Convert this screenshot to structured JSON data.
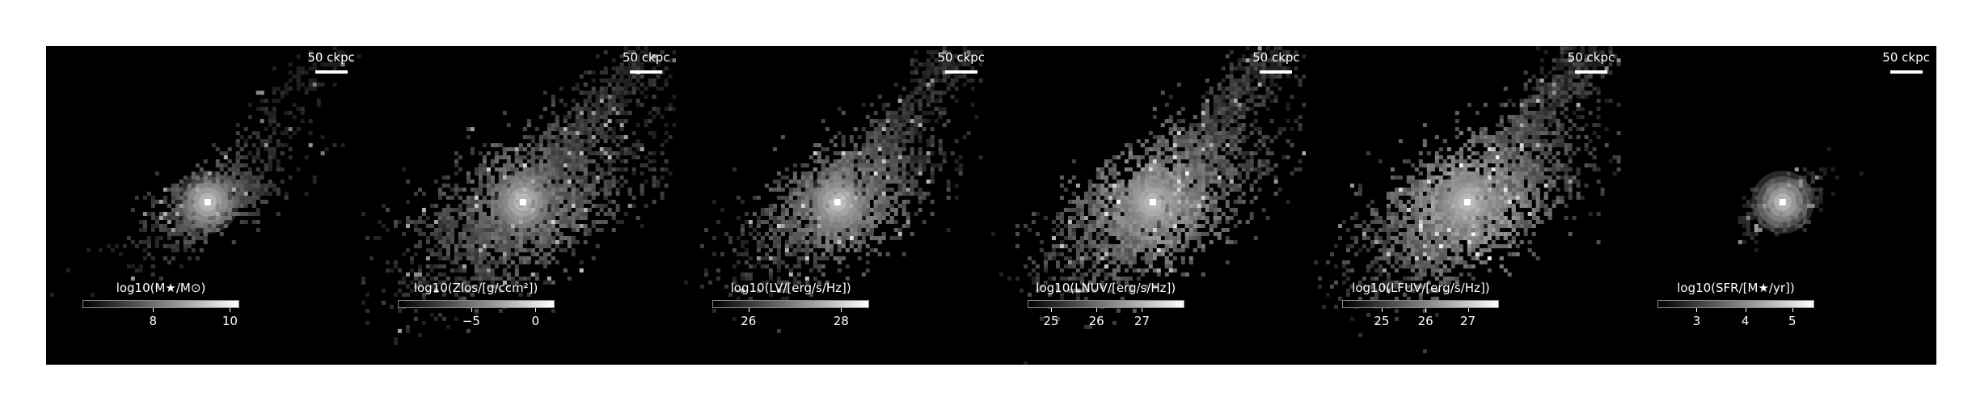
{
  "panels": [
    {
      "scale_label": "50 ckpc",
      "cbar_title": "log10(M★/M⊙)",
      "cbar_ticks": [
        "8",
        "10"
      ],
      "style": "mass"
    },
    {
      "scale_label": "50 ckpc",
      "cbar_title": "log10(Zlos/[g/ccm²])",
      "cbar_ticks": [
        "−5",
        "0"
      ],
      "style": "metal"
    },
    {
      "scale_label": "50 ckpc",
      "cbar_title": "log10(LV/[erg/s/Hz])",
      "cbar_ticks": [
        "26",
        "28"
      ],
      "style": "lv"
    },
    {
      "scale_label": "50 ckpc",
      "cbar_title": "log10(LNUV/[erg/s/Hz])",
      "cbar_ticks": [
        "25",
        "26",
        "27"
      ],
      "style": "nuv"
    },
    {
      "scale_label": "50 ckpc",
      "cbar_title": "log10(LFUV/[erg/s/Hz])",
      "cbar_ticks": [
        "25",
        "26",
        "27"
      ],
      "style": "fuv"
    },
    {
      "scale_label": "50 ckpc",
      "cbar_title": "log10(SFR/[M★/yr])",
      "cbar_ticks": [
        "3",
        "4",
        "5"
      ],
      "style": "sfr"
    }
  ],
  "colors": {
    "background": "#000000",
    "foreground": "#ffffff"
  }
}
